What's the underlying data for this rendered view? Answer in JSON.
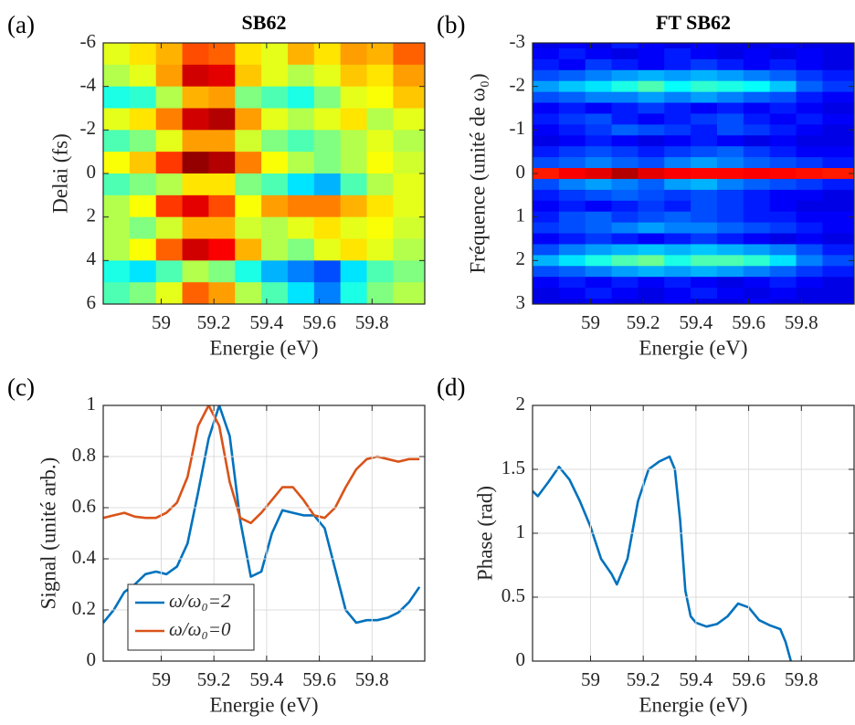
{
  "chart_data": [
    {
      "type": "heatmap",
      "panel_label": "(a)",
      "title": "SB62",
      "xlabel": "Energie (eV)",
      "ylabel": "Delai (fs)",
      "colormap": "jet",
      "xlim": [
        58.78,
        60
      ],
      "xticks": [
        59,
        59.2,
        59.4,
        59.6,
        59.8
      ],
      "ylim": [
        -6,
        6
      ],
      "yticks": [
        -6,
        -4,
        -2,
        0,
        2,
        4,
        6
      ],
      "y_reversed": true,
      "x": [
        58.83,
        58.93,
        59.03,
        59.13,
        59.23,
        59.33,
        59.43,
        59.53,
        59.63,
        59.73,
        59.83,
        59.93
      ],
      "y": [
        -5.5,
        -4.5,
        -3.5,
        -2.5,
        -1.5,
        -0.5,
        0.5,
        1.5,
        2.5,
        3.5,
        4.5,
        5.5
      ],
      "z": [
        [
          0.6,
          0.65,
          0.7,
          0.8,
          0.78,
          0.65,
          0.6,
          0.7,
          0.65,
          0.72,
          0.7,
          0.78
        ],
        [
          0.55,
          0.6,
          0.72,
          0.92,
          0.9,
          0.68,
          0.6,
          0.55,
          0.6,
          0.68,
          0.65,
          0.72
        ],
        [
          0.4,
          0.42,
          0.55,
          0.7,
          0.72,
          0.5,
          0.45,
          0.4,
          0.5,
          0.6,
          0.62,
          0.68
        ],
        [
          0.6,
          0.65,
          0.75,
          0.92,
          0.95,
          0.72,
          0.6,
          0.55,
          0.6,
          0.65,
          0.55,
          0.6
        ],
        [
          0.45,
          0.5,
          0.6,
          0.72,
          0.72,
          0.58,
          0.5,
          0.45,
          0.5,
          0.55,
          0.6,
          0.55
        ],
        [
          0.62,
          0.68,
          0.82,
          0.98,
          0.95,
          0.75,
          0.62,
          0.55,
          0.5,
          0.55,
          0.62,
          0.58
        ],
        [
          0.45,
          0.5,
          0.55,
          0.65,
          0.65,
          0.5,
          0.45,
          0.35,
          0.3,
          0.45,
          0.55,
          0.6
        ],
        [
          0.55,
          0.62,
          0.82,
          0.9,
          0.8,
          0.62,
          0.72,
          0.75,
          0.75,
          0.7,
          0.65,
          0.6
        ],
        [
          0.55,
          0.5,
          0.58,
          0.7,
          0.7,
          0.58,
          0.55,
          0.6,
          0.65,
          0.6,
          0.62,
          0.58
        ],
        [
          0.55,
          0.62,
          0.78,
          0.92,
          0.88,
          0.7,
          0.55,
          0.5,
          0.6,
          0.65,
          0.6,
          0.55
        ],
        [
          0.4,
          0.35,
          0.45,
          0.55,
          0.5,
          0.4,
          0.3,
          0.25,
          0.2,
          0.35,
          0.45,
          0.5
        ],
        [
          0.45,
          0.5,
          0.6,
          0.78,
          0.72,
          0.55,
          0.45,
          0.35,
          0.25,
          0.4,
          0.5,
          0.55
        ]
      ]
    },
    {
      "type": "heatmap",
      "panel_label": "(b)",
      "title": "FT SB62",
      "xlabel": "Energie (eV)",
      "ylabel": "Fréquence (unité de ω₀)",
      "colormap": "jet",
      "xlim": [
        58.78,
        60
      ],
      "xticks": [
        59,
        59.2,
        59.4,
        59.6,
        59.8
      ],
      "ylim": [
        -3,
        3
      ],
      "yticks": [
        -3,
        -2,
        -1,
        0,
        1,
        2,
        3
      ],
      "y_reversed": true,
      "x": [
        58.83,
        58.93,
        59.03,
        59.13,
        59.23,
        59.33,
        59.43,
        59.53,
        59.63,
        59.73,
        59.83,
        59.93
      ],
      "y": [
        -3,
        -2.75,
        -2.5,
        -2.25,
        -2,
        -1.75,
        -1.5,
        -1.25,
        -1,
        -0.75,
        -0.5,
        -0.25,
        0,
        0.25,
        0.5,
        0.75,
        1,
        1.25,
        1.5,
        1.75,
        2,
        2.25,
        2.5,
        2.75,
        3
      ],
      "z": [
        [
          0.1,
          0.12,
          0.1,
          0.15,
          0.12,
          0.1,
          0.12,
          0.1,
          0.1,
          0.12,
          0.1,
          0.1
        ],
        [
          0.12,
          0.15,
          0.12,
          0.1,
          0.12,
          0.15,
          0.12,
          0.1,
          0.12,
          0.1,
          0.12,
          0.1
        ],
        [
          0.15,
          0.12,
          0.18,
          0.15,
          0.12,
          0.15,
          0.18,
          0.15,
          0.12,
          0.15,
          0.12,
          0.1
        ],
        [
          0.2,
          0.22,
          0.25,
          0.28,
          0.3,
          0.28,
          0.3,
          0.28,
          0.25,
          0.22,
          0.18,
          0.15
        ],
        [
          0.28,
          0.32,
          0.35,
          0.4,
          0.45,
          0.38,
          0.42,
          0.4,
          0.38,
          0.32,
          0.22,
          0.18
        ],
        [
          0.2,
          0.22,
          0.25,
          0.25,
          0.28,
          0.25,
          0.28,
          0.25,
          0.22,
          0.2,
          0.15,
          0.12
        ],
        [
          0.12,
          0.15,
          0.12,
          0.15,
          0.18,
          0.15,
          0.12,
          0.15,
          0.12,
          0.15,
          0.12,
          0.1
        ],
        [
          0.15,
          0.18,
          0.2,
          0.15,
          0.12,
          0.15,
          0.18,
          0.2,
          0.15,
          0.12,
          0.15,
          0.12
        ],
        [
          0.12,
          0.15,
          0.18,
          0.22,
          0.2,
          0.18,
          0.15,
          0.2,
          0.18,
          0.15,
          0.12,
          0.1
        ],
        [
          0.1,
          0.12,
          0.15,
          0.12,
          0.1,
          0.12,
          0.15,
          0.12,
          0.1,
          0.12,
          0.1,
          0.1
        ],
        [
          0.15,
          0.18,
          0.2,
          0.18,
          0.15,
          0.18,
          0.2,
          0.22,
          0.18,
          0.15,
          0.12,
          0.12
        ],
        [
          0.2,
          0.22,
          0.25,
          0.22,
          0.2,
          0.25,
          0.28,
          0.25,
          0.22,
          0.2,
          0.18,
          0.15
        ],
        [
          0.85,
          0.88,
          0.9,
          0.95,
          0.9,
          0.88,
          0.87,
          0.87,
          0.88,
          0.87,
          0.86,
          0.85
        ],
        [
          0.2,
          0.25,
          0.28,
          0.25,
          0.22,
          0.28,
          0.3,
          0.25,
          0.22,
          0.2,
          0.18,
          0.15
        ],
        [
          0.15,
          0.18,
          0.2,
          0.22,
          0.2,
          0.18,
          0.2,
          0.18,
          0.15,
          0.12,
          0.12,
          0.1
        ],
        [
          0.12,
          0.15,
          0.12,
          0.15,
          0.18,
          0.15,
          0.2,
          0.18,
          0.15,
          0.12,
          0.1,
          0.1
        ],
        [
          0.15,
          0.2,
          0.22,
          0.18,
          0.2,
          0.22,
          0.2,
          0.18,
          0.15,
          0.15,
          0.12,
          0.12
        ],
        [
          0.18,
          0.2,
          0.22,
          0.25,
          0.28,
          0.25,
          0.25,
          0.22,
          0.2,
          0.18,
          0.15,
          0.12
        ],
        [
          0.12,
          0.15,
          0.18,
          0.15,
          0.12,
          0.15,
          0.18,
          0.15,
          0.12,
          0.1,
          0.12,
          0.1
        ],
        [
          0.2,
          0.25,
          0.28,
          0.3,
          0.32,
          0.3,
          0.32,
          0.3,
          0.28,
          0.25,
          0.2,
          0.15
        ],
        [
          0.3,
          0.35,
          0.4,
          0.45,
          0.48,
          0.4,
          0.45,
          0.45,
          0.42,
          0.35,
          0.25,
          0.2
        ],
        [
          0.2,
          0.22,
          0.25,
          0.28,
          0.3,
          0.28,
          0.3,
          0.28,
          0.25,
          0.22,
          0.18,
          0.15
        ],
        [
          0.12,
          0.15,
          0.12,
          0.15,
          0.12,
          0.15,
          0.12,
          0.1,
          0.12,
          0.15,
          0.12,
          0.1
        ],
        [
          0.1,
          0.12,
          0.15,
          0.12,
          0.1,
          0.12,
          0.15,
          0.12,
          0.1,
          0.12,
          0.1,
          0.1
        ],
        [
          0.1,
          0.1,
          0.12,
          0.1,
          0.1,
          0.12,
          0.1,
          0.1,
          0.12,
          0.1,
          0.1,
          0.1
        ]
      ]
    },
    {
      "type": "line",
      "panel_label": "(c)",
      "xlabel": "Energie (eV)",
      "ylabel": "Signal (unité arb.)",
      "grid": true,
      "legend": "lower left",
      "xlim": [
        58.78,
        60
      ],
      "xticks": [
        59,
        59.2,
        59.4,
        59.6,
        59.8
      ],
      "ylim": [
        0,
        1
      ],
      "yticks": [
        0,
        0.2,
        0.4,
        0.6,
        0.8,
        1
      ],
      "x": [
        58.78,
        58.82,
        58.86,
        58.9,
        58.94,
        58.98,
        59.02,
        59.06,
        59.1,
        59.14,
        59.18,
        59.22,
        59.26,
        59.3,
        59.34,
        59.38,
        59.42,
        59.46,
        59.5,
        59.54,
        59.58,
        59.62,
        59.66,
        59.7,
        59.74,
        59.78,
        59.82,
        59.86,
        59.9,
        59.94,
        59.98
      ],
      "series": [
        {
          "name": "ω/ω₀=2",
          "color": "#0072bd",
          "values": [
            0.15,
            0.2,
            0.27,
            0.3,
            0.34,
            0.35,
            0.34,
            0.37,
            0.46,
            0.66,
            0.87,
            1.0,
            0.88,
            0.55,
            0.33,
            0.35,
            0.5,
            0.59,
            0.58,
            0.57,
            0.57,
            0.52,
            0.36,
            0.2,
            0.15,
            0.16,
            0.16,
            0.17,
            0.19,
            0.23,
            0.29
          ]
        },
        {
          "name": "ω/ω₀=0",
          "color": "#d95319",
          "values": [
            0.56,
            0.57,
            0.58,
            0.565,
            0.56,
            0.56,
            0.58,
            0.62,
            0.72,
            0.92,
            1.0,
            0.92,
            0.7,
            0.56,
            0.54,
            0.58,
            0.63,
            0.68,
            0.68,
            0.63,
            0.57,
            0.56,
            0.6,
            0.68,
            0.75,
            0.79,
            0.8,
            0.79,
            0.78,
            0.79,
            0.79
          ]
        }
      ]
    },
    {
      "type": "line",
      "panel_label": "(d)",
      "xlabel": "Energie (eV)",
      "ylabel": "Phase (rad)",
      "grid": true,
      "xlim": [
        58.78,
        60
      ],
      "xticks": [
        59,
        59.2,
        59.4,
        59.6,
        59.8
      ],
      "ylim": [
        0,
        2
      ],
      "yticks": [
        0,
        0.5,
        1,
        1.5,
        2
      ],
      "x": [
        58.78,
        58.8,
        58.84,
        58.88,
        58.92,
        58.96,
        59.0,
        59.04,
        59.08,
        59.1,
        59.14,
        59.18,
        59.22,
        59.26,
        59.3,
        59.32,
        59.34,
        59.36,
        59.38,
        59.4,
        59.44,
        59.48,
        59.52,
        59.56,
        59.6,
        59.64,
        59.68,
        59.72,
        59.74,
        59.76
      ],
      "series": [
        {
          "color": "#0072bd",
          "values": [
            1.33,
            1.29,
            1.4,
            1.52,
            1.42,
            1.25,
            1.05,
            0.8,
            0.68,
            0.6,
            0.8,
            1.25,
            1.5,
            1.56,
            1.6,
            1.5,
            1.1,
            0.55,
            0.35,
            0.3,
            0.27,
            0.29,
            0.35,
            0.45,
            0.42,
            0.32,
            0.28,
            0.25,
            0.15,
            0
          ]
        }
      ]
    }
  ]
}
